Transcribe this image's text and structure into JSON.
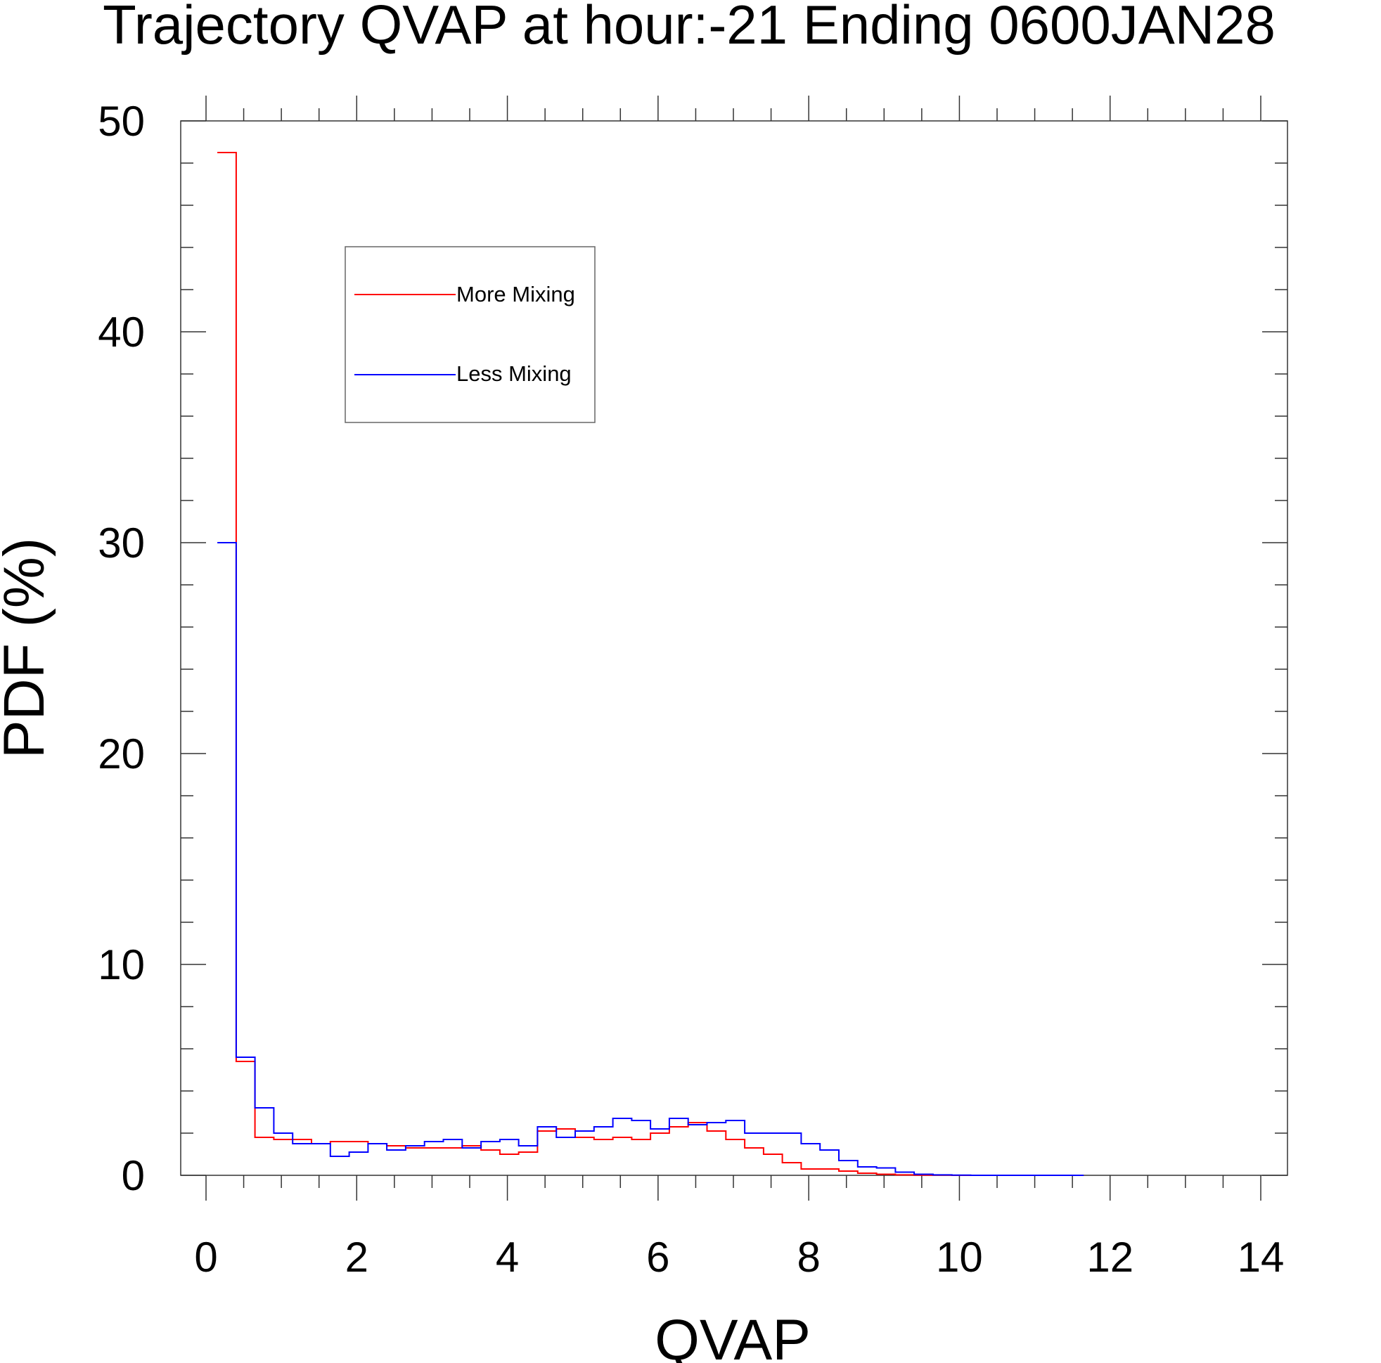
{
  "chart_data": {
    "type": "line",
    "title": "Trajectory QVAP at hour:-21 Ending 0600JAN28",
    "xlabel": "QVAP",
    "ylabel": "PDF (%)",
    "xlim": [
      0,
      14
    ],
    "ylim": [
      0,
      50
    ],
    "x_ticks": [
      0,
      2,
      4,
      6,
      8,
      10,
      12,
      14
    ],
    "y_ticks": [
      0,
      10,
      20,
      30,
      40,
      50
    ],
    "grid": false,
    "legend_position": "top-left",
    "step": true,
    "bin_width": 0.25,
    "series": [
      {
        "name": "More Mixing",
        "color": "#ff0000",
        "x_start": 0.15,
        "values": [
          48.5,
          5.4,
          1.8,
          1.7,
          1.7,
          1.5,
          1.6,
          1.6,
          1.5,
          1.4,
          1.3,
          1.3,
          1.3,
          1.4,
          1.2,
          1.0,
          1.1,
          2.1,
          2.2,
          1.8,
          1.7,
          1.8,
          1.7,
          2.0,
          2.3,
          2.5,
          2.1,
          1.7,
          1.3,
          1.0,
          0.6,
          0.3,
          0.3,
          0.2,
          0.1,
          0.05,
          0.02,
          0.01,
          0.01,
          0.0,
          0.0,
          0.0,
          0.0,
          0.0,
          0.0,
          0.0
        ]
      },
      {
        "name": "Less Mixing",
        "color": "#0000ff",
        "x_start": 0.15,
        "values": [
          30.0,
          5.6,
          3.2,
          2.0,
          1.5,
          1.5,
          0.9,
          1.1,
          1.5,
          1.2,
          1.4,
          1.6,
          1.7,
          1.3,
          1.6,
          1.7,
          1.4,
          2.3,
          1.8,
          2.1,
          2.3,
          2.7,
          2.6,
          2.2,
          2.7,
          2.4,
          2.5,
          2.6,
          2.0,
          2.0,
          2.0,
          1.5,
          1.2,
          0.7,
          0.4,
          0.35,
          0.15,
          0.05,
          0.02,
          0.01,
          0.0,
          0.0,
          0.0,
          0.0,
          0.0,
          0.0
        ]
      }
    ]
  }
}
